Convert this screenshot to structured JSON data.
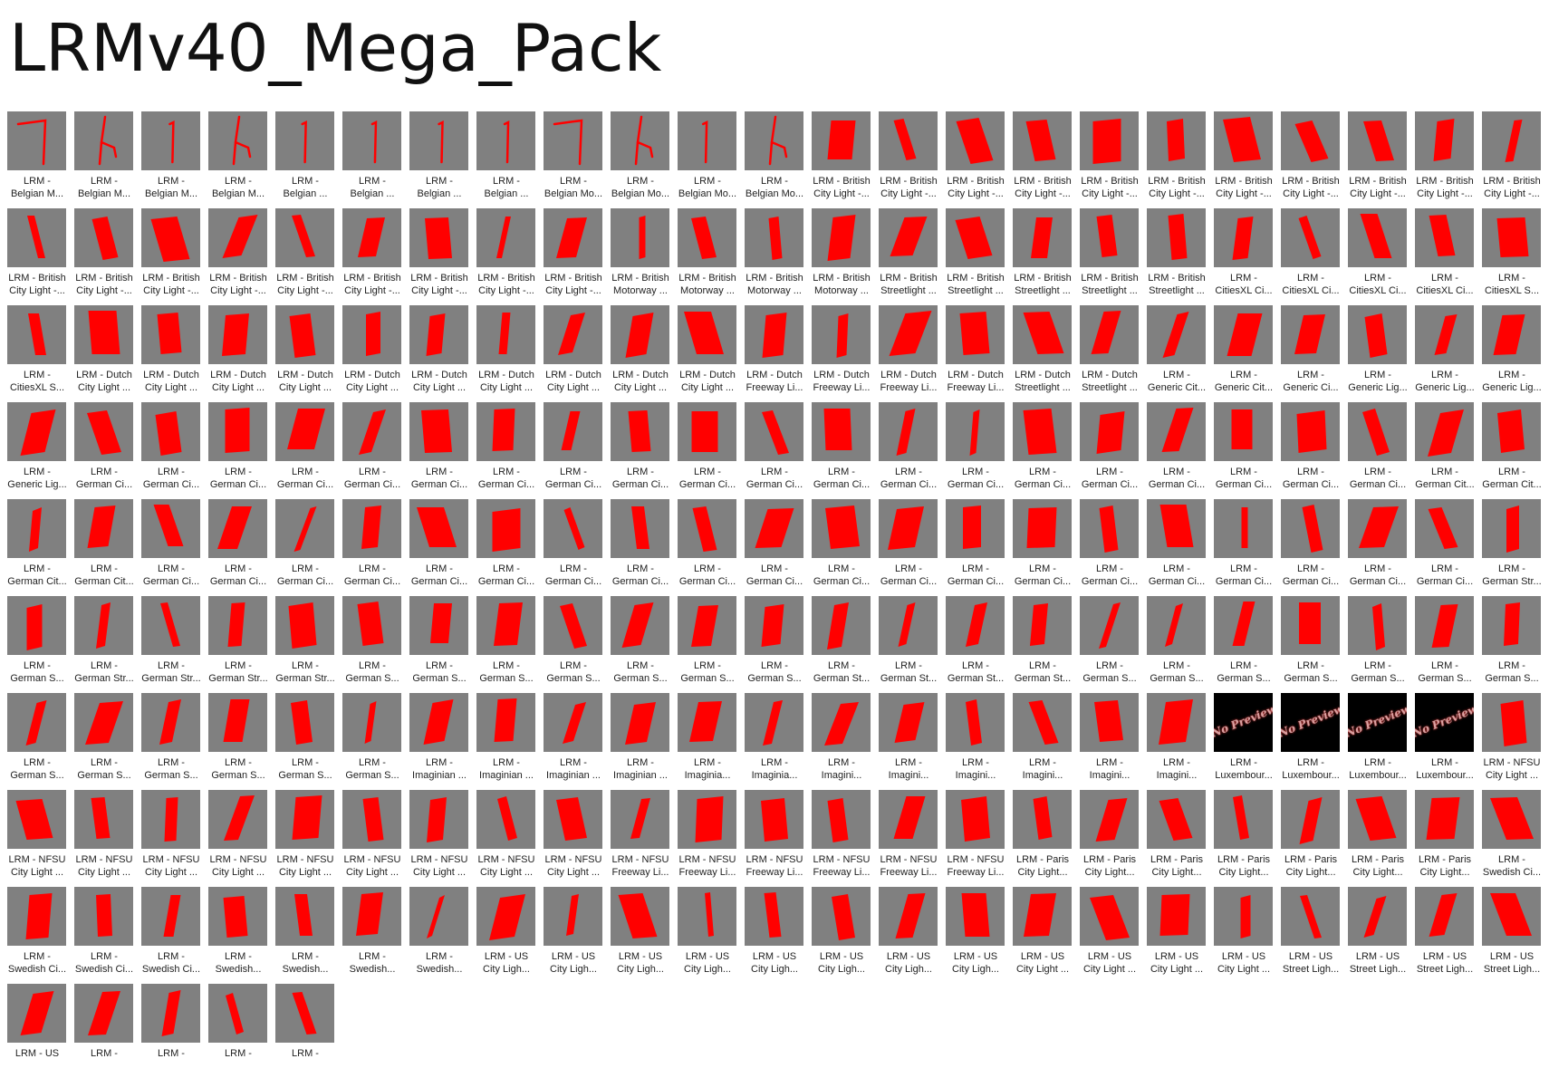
{
  "title": "LRMv40_Mega_Pack",
  "colors": {
    "background": "#ffffff",
    "thumbnail": "#808080",
    "shape": "#ff0000",
    "no_preview_bg": "#000000"
  },
  "icons": {
    "line": "wire-line-icon",
    "fork": "wire-fork-icon",
    "bend": "wire-bend-icon",
    "panel": "red-panel-icon",
    "no_preview": "no-preview-icon"
  },
  "no_preview_text": "No Preview",
  "items": [
    {
      "l1": "LRM -",
      "l2": "Belgian M...",
      "icon": "bend"
    },
    {
      "l1": "LRM -",
      "l2": "Belgian M...",
      "icon": "fork"
    },
    {
      "l1": "LRM -",
      "l2": "Belgian M...",
      "icon": "line"
    },
    {
      "l1": "LRM -",
      "l2": "Belgian M...",
      "icon": "fork"
    },
    {
      "l1": "LRM -",
      "l2": "Belgian ...",
      "icon": "line"
    },
    {
      "l1": "LRM -",
      "l2": "Belgian ...",
      "icon": "line"
    },
    {
      "l1": "LRM -",
      "l2": "Belgian ...",
      "icon": "line"
    },
    {
      "l1": "LRM -",
      "l2": "Belgian ...",
      "icon": "line"
    },
    {
      "l1": "LRM -",
      "l2": "Belgian Mo...",
      "icon": "bend"
    },
    {
      "l1": "LRM -",
      "l2": "Belgian Mo...",
      "icon": "fork"
    },
    {
      "l1": "LRM -",
      "l2": "Belgian Mo...",
      "icon": "line"
    },
    {
      "l1": "LRM -",
      "l2": "Belgian Mo...",
      "icon": "fork"
    },
    {
      "l1": "LRM - British",
      "l2": "City Light -...",
      "icon": "panel"
    },
    {
      "l1": "LRM - British",
      "l2": "City Light -...",
      "icon": "panel"
    },
    {
      "l1": "LRM - British",
      "l2": "City Light -...",
      "icon": "panel"
    },
    {
      "l1": "LRM - British",
      "l2": "City Light -...",
      "icon": "panel"
    },
    {
      "l1": "LRM - British",
      "l2": "City Light -...",
      "icon": "panel"
    },
    {
      "l1": "LRM - British",
      "l2": "City Light -...",
      "icon": "panel"
    },
    {
      "l1": "LRM - British",
      "l2": "City Light -...",
      "icon": "panel"
    },
    {
      "l1": "LRM - British",
      "l2": "City Light -...",
      "icon": "panel"
    },
    {
      "l1": "LRM - British",
      "l2": "City Light -...",
      "icon": "panel"
    },
    {
      "l1": "LRM - British",
      "l2": "City Light -...",
      "icon": "panel"
    },
    {
      "l1": "LRM - British",
      "l2": "City Light -...",
      "icon": "panel"
    },
    {
      "l1": "LRM - British",
      "l2": "City Light -...",
      "icon": "panel"
    },
    {
      "l1": "LRM - British",
      "l2": "City Light -...",
      "icon": "panel"
    },
    {
      "l1": "LRM - British",
      "l2": "City Light -...",
      "icon": "panel"
    },
    {
      "l1": "LRM - British",
      "l2": "City Light -...",
      "icon": "panel"
    },
    {
      "l1": "LRM - British",
      "l2": "City Light -...",
      "icon": "panel"
    },
    {
      "l1": "LRM - British",
      "l2": "City Light -...",
      "icon": "panel"
    },
    {
      "l1": "LRM - British",
      "l2": "City Light -...",
      "icon": "panel"
    },
    {
      "l1": "LRM - British",
      "l2": "City Light -...",
      "icon": "panel"
    },
    {
      "l1": "LRM - British",
      "l2": "City Light -...",
      "icon": "panel"
    },
    {
      "l1": "LRM - British",
      "l2": "Motorway ...",
      "icon": "panel"
    },
    {
      "l1": "LRM - British",
      "l2": "Motorway ...",
      "icon": "panel"
    },
    {
      "l1": "LRM - British",
      "l2": "Motorway ...",
      "icon": "panel"
    },
    {
      "l1": "LRM - British",
      "l2": "Motorway ...",
      "icon": "panel"
    },
    {
      "l1": "LRM - British",
      "l2": "Streetlight ...",
      "icon": "panel"
    },
    {
      "l1": "LRM - British",
      "l2": "Streetlight ...",
      "icon": "panel"
    },
    {
      "l1": "LRM - British",
      "l2": "Streetlight ...",
      "icon": "panel"
    },
    {
      "l1": "LRM - British",
      "l2": "Streetlight ...",
      "icon": "panel"
    },
    {
      "l1": "LRM - British",
      "l2": "Streetlight ...",
      "icon": "panel"
    },
    {
      "l1": "LRM -",
      "l2": "CitiesXL Ci...",
      "icon": "panel"
    },
    {
      "l1": "LRM -",
      "l2": "CitiesXL Ci...",
      "icon": "panel"
    },
    {
      "l1": "LRM -",
      "l2": "CitiesXL Ci...",
      "icon": "panel"
    },
    {
      "l1": "LRM -",
      "l2": "CitiesXL Ci...",
      "icon": "panel"
    },
    {
      "l1": "LRM -",
      "l2": "CitiesXL S...",
      "icon": "panel"
    },
    {
      "l1": "LRM -",
      "l2": "CitiesXL S...",
      "icon": "panel"
    },
    {
      "l1": "LRM - Dutch",
      "l2": "City Light ...",
      "icon": "panel"
    },
    {
      "l1": "LRM - Dutch",
      "l2": "City Light ...",
      "icon": "panel"
    },
    {
      "l1": "LRM - Dutch",
      "l2": "City Light ...",
      "icon": "panel"
    },
    {
      "l1": "LRM - Dutch",
      "l2": "City Light ...",
      "icon": "panel"
    },
    {
      "l1": "LRM - Dutch",
      "l2": "City Light ...",
      "icon": "panel"
    },
    {
      "l1": "LRM - Dutch",
      "l2": "City Light ...",
      "icon": "panel"
    },
    {
      "l1": "LRM - Dutch",
      "l2": "City Light ...",
      "icon": "panel"
    },
    {
      "l1": "LRM - Dutch",
      "l2": "City Light ...",
      "icon": "panel"
    },
    {
      "l1": "LRM - Dutch",
      "l2": "City Light ...",
      "icon": "panel"
    },
    {
      "l1": "LRM - Dutch",
      "l2": "City Light ...",
      "icon": "panel"
    },
    {
      "l1": "LRM - Dutch",
      "l2": "Freeway Li...",
      "icon": "panel"
    },
    {
      "l1": "LRM - Dutch",
      "l2": "Freeway Li...",
      "icon": "panel"
    },
    {
      "l1": "LRM - Dutch",
      "l2": "Freeway Li...",
      "icon": "panel"
    },
    {
      "l1": "LRM - Dutch",
      "l2": "Freeway Li...",
      "icon": "panel"
    },
    {
      "l1": "LRM - Dutch",
      "l2": "Streetlight ...",
      "icon": "panel"
    },
    {
      "l1": "LRM - Dutch",
      "l2": "Streetlight ...",
      "icon": "panel"
    },
    {
      "l1": "LRM -",
      "l2": "Generic Cit...",
      "icon": "panel"
    },
    {
      "l1": "LRM -",
      "l2": "Generic Cit...",
      "icon": "panel"
    },
    {
      "l1": "LRM -",
      "l2": "Generic Ci...",
      "icon": "panel"
    },
    {
      "l1": "LRM -",
      "l2": "Generic Lig...",
      "icon": "panel"
    },
    {
      "l1": "LRM -",
      "l2": "Generic Lig...",
      "icon": "panel"
    },
    {
      "l1": "LRM -",
      "l2": "Generic Lig...",
      "icon": "panel"
    },
    {
      "l1": "LRM -",
      "l2": "Generic Lig...",
      "icon": "panel"
    },
    {
      "l1": "LRM -",
      "l2": "German Ci...",
      "icon": "panel"
    },
    {
      "l1": "LRM -",
      "l2": "German Ci...",
      "icon": "panel"
    },
    {
      "l1": "LRM -",
      "l2": "German Ci...",
      "icon": "panel"
    },
    {
      "l1": "LRM -",
      "l2": "German Ci...",
      "icon": "panel"
    },
    {
      "l1": "LRM -",
      "l2": "German Ci...",
      "icon": "panel"
    },
    {
      "l1": "LRM -",
      "l2": "German Ci...",
      "icon": "panel"
    },
    {
      "l1": "LRM -",
      "l2": "German Ci...",
      "icon": "panel"
    },
    {
      "l1": "LRM -",
      "l2": "German Ci...",
      "icon": "panel"
    },
    {
      "l1": "LRM -",
      "l2": "German Ci...",
      "icon": "panel"
    },
    {
      "l1": "LRM -",
      "l2": "German Ci...",
      "icon": "panel"
    },
    {
      "l1": "LRM -",
      "l2": "German Ci...",
      "icon": "panel"
    },
    {
      "l1": "LRM -",
      "l2": "German Ci...",
      "icon": "panel"
    },
    {
      "l1": "LRM -",
      "l2": "German Ci...",
      "icon": "panel"
    },
    {
      "l1": "LRM -",
      "l2": "German Ci...",
      "icon": "panel"
    },
    {
      "l1": "LRM -",
      "l2": "German Ci...",
      "icon": "panel"
    },
    {
      "l1": "LRM -",
      "l2": "German Ci...",
      "icon": "panel"
    },
    {
      "l1": "LRM -",
      "l2": "German Ci...",
      "icon": "panel"
    },
    {
      "l1": "LRM -",
      "l2": "German Ci...",
      "icon": "panel"
    },
    {
      "l1": "LRM -",
      "l2": "German Ci...",
      "icon": "panel"
    },
    {
      "l1": "LRM -",
      "l2": "German Ci...",
      "icon": "panel"
    },
    {
      "l1": "LRM -",
      "l2": "German Cit...",
      "icon": "panel"
    },
    {
      "l1": "LRM -",
      "l2": "German Cit...",
      "icon": "panel"
    },
    {
      "l1": "LRM -",
      "l2": "German Cit...",
      "icon": "panel"
    },
    {
      "l1": "LRM -",
      "l2": "German Cit...",
      "icon": "panel"
    },
    {
      "l1": "LRM -",
      "l2": "German Ci...",
      "icon": "panel"
    },
    {
      "l1": "LRM -",
      "l2": "German Ci...",
      "icon": "panel"
    },
    {
      "l1": "LRM -",
      "l2": "German Ci...",
      "icon": "panel"
    },
    {
      "l1": "LRM -",
      "l2": "German Ci...",
      "icon": "panel"
    },
    {
      "l1": "LRM -",
      "l2": "German Ci...",
      "icon": "panel"
    },
    {
      "l1": "LRM -",
      "l2": "German Ci...",
      "icon": "panel"
    },
    {
      "l1": "LRM -",
      "l2": "German Ci...",
      "icon": "panel"
    },
    {
      "l1": "LRM -",
      "l2": "German Ci...",
      "icon": "panel"
    },
    {
      "l1": "LRM -",
      "l2": "German Ci...",
      "icon": "panel"
    },
    {
      "l1": "LRM -",
      "l2": "German Ci...",
      "icon": "panel"
    },
    {
      "l1": "LRM -",
      "l2": "German Ci...",
      "icon": "panel"
    },
    {
      "l1": "LRM -",
      "l2": "German Ci...",
      "icon": "panel"
    },
    {
      "l1": "LRM -",
      "l2": "German Ci...",
      "icon": "panel"
    },
    {
      "l1": "LRM -",
      "l2": "German Ci...",
      "icon": "panel"
    },
    {
      "l1": "LRM -",
      "l2": "German Ci...",
      "icon": "panel"
    },
    {
      "l1": "LRM -",
      "l2": "German Ci...",
      "icon": "panel"
    },
    {
      "l1": "LRM -",
      "l2": "German Ci...",
      "icon": "panel"
    },
    {
      "l1": "LRM -",
      "l2": "German Ci...",
      "icon": "panel"
    },
    {
      "l1": "LRM -",
      "l2": "German Ci...",
      "icon": "panel"
    },
    {
      "l1": "LRM -",
      "l2": "German Ci...",
      "icon": "panel"
    },
    {
      "l1": "LRM -",
      "l2": "German Str...",
      "icon": "panel"
    },
    {
      "l1": "LRM -",
      "l2": "German S...",
      "icon": "panel"
    },
    {
      "l1": "LRM -",
      "l2": "German Str...",
      "icon": "panel"
    },
    {
      "l1": "LRM -",
      "l2": "German Str...",
      "icon": "panel"
    },
    {
      "l1": "LRM -",
      "l2": "German Str...",
      "icon": "panel"
    },
    {
      "l1": "LRM -",
      "l2": "German Str...",
      "icon": "panel"
    },
    {
      "l1": "LRM -",
      "l2": "German S...",
      "icon": "panel"
    },
    {
      "l1": "LRM -",
      "l2": "German S...",
      "icon": "panel"
    },
    {
      "l1": "LRM -",
      "l2": "German S...",
      "icon": "panel"
    },
    {
      "l1": "LRM -",
      "l2": "German S...",
      "icon": "panel"
    },
    {
      "l1": "LRM -",
      "l2": "German S...",
      "icon": "panel"
    },
    {
      "l1": "LRM -",
      "l2": "German S...",
      "icon": "panel"
    },
    {
      "l1": "LRM -",
      "l2": "German S...",
      "icon": "panel"
    },
    {
      "l1": "LRM -",
      "l2": "German St...",
      "icon": "panel"
    },
    {
      "l1": "LRM -",
      "l2": "German St...",
      "icon": "panel"
    },
    {
      "l1": "LRM -",
      "l2": "German St...",
      "icon": "panel"
    },
    {
      "l1": "LRM -",
      "l2": "German St...",
      "icon": "panel"
    },
    {
      "l1": "LRM -",
      "l2": "German S...",
      "icon": "panel"
    },
    {
      "l1": "LRM -",
      "l2": "German S...",
      "icon": "panel"
    },
    {
      "l1": "LRM -",
      "l2": "German S...",
      "icon": "panel"
    },
    {
      "l1": "LRM -",
      "l2": "German S...",
      "icon": "panel"
    },
    {
      "l1": "LRM -",
      "l2": "German S...",
      "icon": "panel"
    },
    {
      "l1": "LRM -",
      "l2": "German S...",
      "icon": "panel"
    },
    {
      "l1": "LRM -",
      "l2": "German S...",
      "icon": "panel"
    },
    {
      "l1": "LRM -",
      "l2": "German S...",
      "icon": "panel"
    },
    {
      "l1": "LRM -",
      "l2": "German S...",
      "icon": "panel"
    },
    {
      "l1": "LRM -",
      "l2": "German S...",
      "icon": "panel"
    },
    {
      "l1": "LRM -",
      "l2": "German S...",
      "icon": "panel"
    },
    {
      "l1": "LRM -",
      "l2": "German S...",
      "icon": "panel"
    },
    {
      "l1": "LRM -",
      "l2": "German S...",
      "icon": "panel"
    },
    {
      "l1": "LRM -",
      "l2": "Imaginian ...",
      "icon": "panel"
    },
    {
      "l1": "LRM -",
      "l2": "Imaginian ...",
      "icon": "panel"
    },
    {
      "l1": "LRM -",
      "l2": "Imaginian ...",
      "icon": "panel"
    },
    {
      "l1": "LRM -",
      "l2": "Imaginian ...",
      "icon": "panel"
    },
    {
      "l1": "LRM -",
      "l2": "Imaginia...",
      "icon": "panel"
    },
    {
      "l1": "LRM -",
      "l2": "Imaginia...",
      "icon": "panel"
    },
    {
      "l1": "LRM -",
      "l2": "Imagini...",
      "icon": "panel"
    },
    {
      "l1": "LRM -",
      "l2": "Imagini...",
      "icon": "panel"
    },
    {
      "l1": "LRM -",
      "l2": "Imagini...",
      "icon": "panel"
    },
    {
      "l1": "LRM -",
      "l2": "Imagini...",
      "icon": "panel"
    },
    {
      "l1": "LRM -",
      "l2": "Imagini...",
      "icon": "panel"
    },
    {
      "l1": "LRM -",
      "l2": "Imagini...",
      "icon": "panel"
    },
    {
      "l1": "LRM -",
      "l2": "Luxembour...",
      "icon": "no_preview"
    },
    {
      "l1": "LRM -",
      "l2": "Luxembour...",
      "icon": "no_preview"
    },
    {
      "l1": "LRM -",
      "l2": "Luxembour...",
      "icon": "no_preview"
    },
    {
      "l1": "LRM -",
      "l2": "Luxembour...",
      "icon": "no_preview"
    },
    {
      "l1": "LRM - NFSU",
      "l2": "City Light ...",
      "icon": "panel"
    },
    {
      "l1": "LRM - NFSU",
      "l2": "City Light ...",
      "icon": "panel"
    },
    {
      "l1": "LRM - NFSU",
      "l2": "City Light ...",
      "icon": "panel"
    },
    {
      "l1": "LRM - NFSU",
      "l2": "City Light ...",
      "icon": "panel"
    },
    {
      "l1": "LRM - NFSU",
      "l2": "City Light ...",
      "icon": "panel"
    },
    {
      "l1": "LRM - NFSU",
      "l2": "City Light ...",
      "icon": "panel"
    },
    {
      "l1": "LRM - NFSU",
      "l2": "City Light ...",
      "icon": "panel"
    },
    {
      "l1": "LRM - NFSU",
      "l2": "City Light ...",
      "icon": "panel"
    },
    {
      "l1": "LRM - NFSU",
      "l2": "City Light ...",
      "icon": "panel"
    },
    {
      "l1": "LRM - NFSU",
      "l2": "City Light ...",
      "icon": "panel"
    },
    {
      "l1": "LRM - NFSU",
      "l2": "Freeway Li...",
      "icon": "panel"
    },
    {
      "l1": "LRM - NFSU",
      "l2": "Freeway Li...",
      "icon": "panel"
    },
    {
      "l1": "LRM - NFSU",
      "l2": "Freeway Li...",
      "icon": "panel"
    },
    {
      "l1": "LRM - NFSU",
      "l2": "Freeway Li...",
      "icon": "panel"
    },
    {
      "l1": "LRM - NFSU",
      "l2": "Freeway Li...",
      "icon": "panel"
    },
    {
      "l1": "LRM - NFSU",
      "l2": "Freeway Li...",
      "icon": "panel"
    },
    {
      "l1": "LRM - Paris",
      "l2": "City Light...",
      "icon": "panel"
    },
    {
      "l1": "LRM - Paris",
      "l2": "City Light...",
      "icon": "panel"
    },
    {
      "l1": "LRM - Paris",
      "l2": "City Light...",
      "icon": "panel"
    },
    {
      "l1": "LRM - Paris",
      "l2": "City Light...",
      "icon": "panel"
    },
    {
      "l1": "LRM - Paris",
      "l2": "City Light...",
      "icon": "panel"
    },
    {
      "l1": "LRM - Paris",
      "l2": "City Light...",
      "icon": "panel"
    },
    {
      "l1": "LRM - Paris",
      "l2": "City Light...",
      "icon": "panel"
    },
    {
      "l1": "LRM -",
      "l2": "Swedish Ci...",
      "icon": "panel"
    },
    {
      "l1": "LRM -",
      "l2": "Swedish Ci...",
      "icon": "panel"
    },
    {
      "l1": "LRM -",
      "l2": "Swedish Ci...",
      "icon": "panel"
    },
    {
      "l1": "LRM -",
      "l2": "Swedish Ci...",
      "icon": "panel"
    },
    {
      "l1": "LRM -",
      "l2": "Swedish...",
      "icon": "panel"
    },
    {
      "l1": "LRM -",
      "l2": "Swedish...",
      "icon": "panel"
    },
    {
      "l1": "LRM -",
      "l2": "Swedish...",
      "icon": "panel"
    },
    {
      "l1": "LRM -",
      "l2": "Swedish...",
      "icon": "panel"
    },
    {
      "l1": "LRM - US",
      "l2": "City Ligh...",
      "icon": "panel"
    },
    {
      "l1": "LRM - US",
      "l2": "City Ligh...",
      "icon": "panel"
    },
    {
      "l1": "LRM - US",
      "l2": "City Ligh...",
      "icon": "panel"
    },
    {
      "l1": "LRM - US",
      "l2": "City Ligh...",
      "icon": "panel"
    },
    {
      "l1": "LRM - US",
      "l2": "City Ligh...",
      "icon": "panel"
    },
    {
      "l1": "LRM - US",
      "l2": "City Ligh...",
      "icon": "panel"
    },
    {
      "l1": "LRM - US",
      "l2": "City Ligh...",
      "icon": "panel"
    },
    {
      "l1": "LRM - US",
      "l2": "City Ligh...",
      "icon": "panel"
    },
    {
      "l1": "LRM - US",
      "l2": "City Light ...",
      "icon": "panel"
    },
    {
      "l1": "LRM - US",
      "l2": "City Light ...",
      "icon": "panel"
    },
    {
      "l1": "LRM - US",
      "l2": "City Light ...",
      "icon": "panel"
    },
    {
      "l1": "LRM - US",
      "l2": "City Light ...",
      "icon": "panel"
    },
    {
      "l1": "LRM - US",
      "l2": "Street Ligh...",
      "icon": "panel"
    },
    {
      "l1": "LRM - US",
      "l2": "Street Ligh...",
      "icon": "panel"
    },
    {
      "l1": "LRM - US",
      "l2": "Street Ligh...",
      "icon": "panel"
    },
    {
      "l1": "LRM - US",
      "l2": "Street Ligh...",
      "icon": "panel"
    },
    {
      "l1": "LRM - US",
      "l2": "",
      "icon": "panel"
    },
    {
      "l1": "LRM -",
      "l2": "",
      "icon": "panel"
    },
    {
      "l1": "LRM -",
      "l2": "",
      "icon": "panel"
    },
    {
      "l1": "LRM -",
      "l2": "",
      "icon": "panel"
    },
    {
      "l1": "LRM -",
      "l2": "",
      "icon": "panel"
    }
  ]
}
